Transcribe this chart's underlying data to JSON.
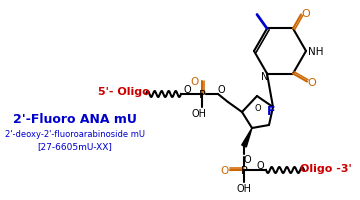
{
  "bg_color": "#ffffff",
  "bond_color": "#000000",
  "red_color": "#cc0000",
  "blue_color": "#0000cc",
  "orange_color": "#cc6600",
  "figsize": [
    3.6,
    2.01
  ],
  "dpi": 100,
  "title": "2'-Fluoro ANA mU",
  "subtitle": "2'-deoxy-2'-fluoroarabinoside mU",
  "catalog": "[27-6605mU-XX]",
  "label_5prime": "5'- Oligo",
  "label_3prime": "Oligo -3'"
}
